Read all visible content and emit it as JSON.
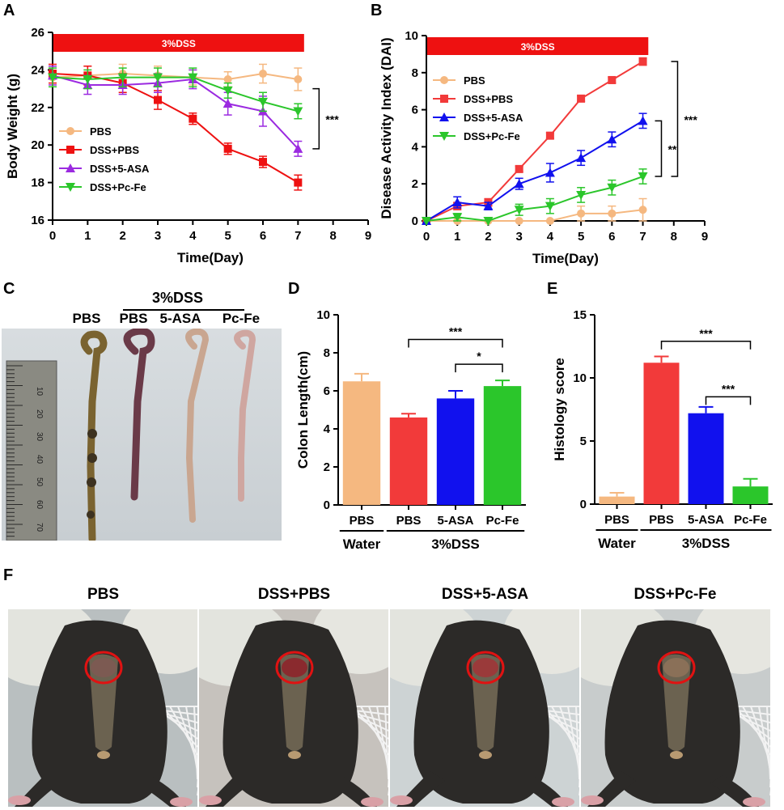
{
  "panels": {
    "a": "A",
    "b": "B",
    "c": "C",
    "d": "D",
    "e": "E",
    "f": "F"
  },
  "colors": {
    "pbs": "#f5b880",
    "dss_pbs": "#f23a3a",
    "dss_5asa": "#9b2ae0",
    "dss_pcfe": "#2bc62b",
    "dss_5asa_bar": "#1111ee",
    "dss_band": "#ee1111",
    "sig": "#000000"
  },
  "chart_data": [
    {
      "id": "A",
      "type": "line",
      "band_label": "3%DSS",
      "xlabel": "Time(Day)",
      "ylabel": "Body Weight (g)",
      "xlim": [
        0,
        9
      ],
      "ylim": [
        16,
        26
      ],
      "xticks": [
        "0",
        "1",
        "2",
        "3",
        "4",
        "5",
        "6",
        "7",
        "8",
        "9"
      ],
      "yticks": [
        "16",
        "18",
        "20",
        "22",
        "24",
        "26"
      ],
      "legend_position": "bottom-left",
      "x": [
        0,
        1,
        2,
        3,
        4,
        5,
        6,
        7
      ],
      "series": [
        {
          "name": "PBS",
          "marker": "circle",
          "color": "#f5b880",
          "values": [
            23.6,
            23.7,
            23.8,
            23.7,
            23.6,
            23.5,
            23.8,
            23.5
          ],
          "errors": [
            0.5,
            0.5,
            0.5,
            0.5,
            0.4,
            0.4,
            0.5,
            0.6
          ]
        },
        {
          "name": "DSS+PBS",
          "marker": "square",
          "color": "#ee1111",
          "values": [
            23.8,
            23.7,
            23.3,
            22.4,
            21.4,
            19.8,
            19.1,
            18.0
          ],
          "errors": [
            0.5,
            0.5,
            0.5,
            0.5,
            0.3,
            0.3,
            0.3,
            0.4
          ]
        },
        {
          "name": "DSS+5-ASA",
          "marker": "triangle-up",
          "color": "#9b2ae0",
          "values": [
            23.7,
            23.2,
            23.2,
            23.3,
            23.5,
            22.2,
            21.8,
            19.8
          ],
          "errors": [
            0.5,
            0.5,
            0.5,
            0.5,
            0.5,
            0.6,
            0.8,
            0.4
          ]
        },
        {
          "name": "DSS+Pc-Fe",
          "marker": "triangle-down",
          "color": "#2bc62b",
          "values": [
            23.6,
            23.5,
            23.6,
            23.6,
            23.6,
            22.9,
            22.3,
            21.8
          ],
          "errors": [
            0.5,
            0.5,
            0.5,
            0.5,
            0.5,
            0.4,
            0.5,
            0.4
          ]
        }
      ],
      "significance": [
        {
          "label": "***",
          "from": 19.8,
          "to": 23.0
        }
      ]
    },
    {
      "id": "B",
      "type": "line",
      "band_label": "3%DSS",
      "xlabel": "Time(Day)",
      "ylabel": "Disease Activity Index (DAI)",
      "xlim": [
        0,
        9
      ],
      "ylim": [
        0,
        10
      ],
      "xticks": [
        "0",
        "1",
        "2",
        "3",
        "4",
        "5",
        "6",
        "7",
        "8",
        "9"
      ],
      "yticks": [
        "0",
        "2",
        "4",
        "6",
        "8",
        "10"
      ],
      "legend_position": "top-left",
      "x": [
        0,
        1,
        2,
        3,
        4,
        5,
        6,
        7
      ],
      "series": [
        {
          "name": "PBS",
          "marker": "circle",
          "color": "#f5b880",
          "values": [
            0,
            0,
            0,
            0,
            0,
            0.4,
            0.4,
            0.6
          ],
          "errors": [
            0,
            0,
            0,
            0,
            0,
            0.4,
            0.4,
            0.6
          ]
        },
        {
          "name": "DSS+PBS",
          "marker": "square",
          "color": "#f23a3a",
          "values": [
            0,
            0.8,
            1.0,
            2.8,
            4.6,
            6.6,
            7.6,
            8.6
          ],
          "errors": [
            0,
            0.2,
            0.2,
            0.15,
            0.15,
            0.15,
            0.15,
            0.2
          ]
        },
        {
          "name": "DSS+5-ASA",
          "marker": "triangle-up",
          "color": "#1111ee",
          "values": [
            0,
            1.0,
            0.8,
            2.0,
            2.6,
            3.4,
            4.4,
            5.4
          ],
          "errors": [
            0,
            0.3,
            0.2,
            0.3,
            0.5,
            0.4,
            0.4,
            0.4
          ]
        },
        {
          "name": "DSS+Pc-Fe",
          "marker": "triangle-down",
          "color": "#2bc62b",
          "values": [
            0,
            0.2,
            0,
            0.6,
            0.8,
            1.4,
            1.8,
            2.4
          ],
          "errors": [
            0,
            0.2,
            0,
            0.3,
            0.4,
            0.4,
            0.4,
            0.4
          ]
        }
      ],
      "significance": [
        {
          "label": "***",
          "from": 2.4,
          "to": 8.6,
          "offset": 2
        },
        {
          "label": "**",
          "from": 2.4,
          "to": 5.4,
          "offset": 1
        }
      ]
    },
    {
      "id": "D",
      "type": "bar",
      "ylabel": "Colon Length(cm)",
      "ylim": [
        0,
        10
      ],
      "yticks": [
        "0",
        "2",
        "4",
        "6",
        "8",
        "10"
      ],
      "categories": [
        "PBS",
        "PBS",
        "5-ASA",
        "Pc-Fe"
      ],
      "values": [
        6.5,
        4.6,
        5.6,
        6.25
      ],
      "errors": [
        0.4,
        0.2,
        0.4,
        0.3
      ],
      "bar_colors": [
        "#f5b880",
        "#f23a3a",
        "#1111ee",
        "#2bc62b"
      ],
      "group_labels": [
        {
          "label": "Water",
          "from": 0,
          "to": 0
        },
        {
          "label": "3%DSS",
          "from": 1,
          "to": 3
        }
      ],
      "significance": [
        {
          "label": "***",
          "from": 1,
          "to": 3,
          "y": 8.7
        },
        {
          "label": "*",
          "from": 2,
          "to": 3,
          "y": 7.4
        }
      ]
    },
    {
      "id": "E",
      "type": "bar",
      "ylabel": "Histology score",
      "ylim": [
        0,
        15
      ],
      "yticks": [
        "0",
        "5",
        "10",
        "15"
      ],
      "categories": [
        "PBS",
        "PBS",
        "5-ASA",
        "Pc-Fe"
      ],
      "values": [
        0.6,
        11.2,
        7.2,
        1.4
      ],
      "errors": [
        0.3,
        0.5,
        0.5,
        0.6
      ],
      "bar_colors": [
        "#f5b880",
        "#f23a3a",
        "#1111ee",
        "#2bc62b"
      ],
      "group_labels": [
        {
          "label": "Water",
          "from": 0,
          "to": 0
        },
        {
          "label": "3%DSS",
          "from": 1,
          "to": 3
        }
      ],
      "significance": [
        {
          "label": "***",
          "from": 1,
          "to": 3,
          "y": 12.9
        },
        {
          "label": "***",
          "from": 2,
          "to": 3,
          "y": 8.5
        }
      ]
    }
  ],
  "panel_c": {
    "header_dss": "3%DSS",
    "labels": [
      "PBS",
      "PBS",
      "5-ASA",
      "Pc-Fe"
    ],
    "ruler_numbers": [
      "10",
      "20",
      "30",
      "40",
      "50",
      "60",
      "70"
    ]
  },
  "panel_f": {
    "titles": [
      "PBS",
      "DSS+PBS",
      "DSS+5-ASA",
      "DSS+Pc-Fe"
    ]
  }
}
